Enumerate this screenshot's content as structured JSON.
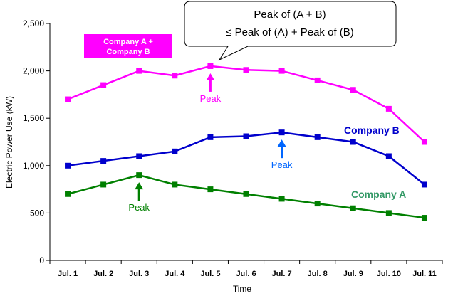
{
  "chart_data": {
    "type": "line",
    "title": "",
    "xlabel": "Time",
    "ylabel": "Electric Power Use (kW)",
    "ylim": [
      0,
      2500
    ],
    "yticks": [
      0,
      500,
      1000,
      1500,
      2000,
      2500
    ],
    "ytick_labels": [
      "0",
      "500",
      "1,000",
      "1,500",
      "2,000",
      "2,500"
    ],
    "categories": [
      "Jul. 1",
      "Jul. 2",
      "Jul. 3",
      "Jul. 4",
      "Jul. 5",
      "Jul. 6",
      "Jul. 7",
      "Jul. 8",
      "Jul. 9",
      "Jul. 10",
      "Jul. 11"
    ],
    "grid": false,
    "series": [
      {
        "name": "Company A + Company B",
        "color": "#ff00ff",
        "values": [
          1700,
          1850,
          2000,
          1950,
          2050,
          2010,
          2000,
          1900,
          1800,
          1600,
          1250
        ]
      },
      {
        "name": "Company B",
        "color": "#0000cc",
        "values": [
          1000,
          1050,
          1100,
          1150,
          1300,
          1310,
          1350,
          1300,
          1250,
          1100,
          800
        ]
      },
      {
        "name": "Company A",
        "color": "#008000",
        "values": [
          700,
          800,
          900,
          800,
          750,
          700,
          650,
          600,
          550,
          500,
          450
        ]
      }
    ],
    "series_labels": [
      {
        "text": "Company B",
        "color": "#0000cc"
      },
      {
        "text": "Company A",
        "color": "#339966"
      }
    ],
    "boxed_label": {
      "line1": "Company A +",
      "line2": "Company B",
      "background": "#ff00ff"
    },
    "annotations": [
      {
        "text": "Peak",
        "color": "#ff00ff",
        "series": 0,
        "index": 4
      },
      {
        "text": "Peak",
        "color": "#0066ff",
        "series": 1,
        "index": 6
      },
      {
        "text": "Peak",
        "color": "#008000",
        "series": 2,
        "index": 2
      }
    ],
    "callout": {
      "line1": "Peak of (A + B)",
      "line2": "≤ Peak of (A) + Peak of (B)"
    }
  }
}
